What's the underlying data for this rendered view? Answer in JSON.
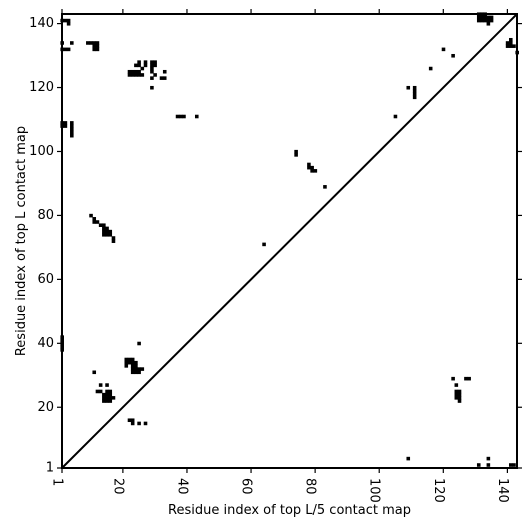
{
  "chart_data": {
    "type": "heatmap",
    "title": "",
    "xlabel": "Residue index of top L/5 contact map",
    "ylabel": "Residue index of top L contact map",
    "xlim": [
      1,
      143
    ],
    "ylim": [
      1,
      143
    ],
    "x_ticks": [
      1,
      20,
      40,
      60,
      80,
      100,
      120,
      140
    ],
    "y_ticks": [
      1,
      20,
      40,
      60,
      80,
      100,
      120,
      140
    ],
    "diagonal_line": true,
    "grid": false,
    "cell_color": "#000000",
    "upper_left_contacts": [
      [
        1,
        141
      ],
      [
        2,
        141
      ],
      [
        3,
        141
      ],
      [
        3,
        140
      ],
      [
        1,
        134
      ],
      [
        1,
        132
      ],
      [
        2,
        132
      ],
      [
        3,
        132
      ],
      [
        4,
        134
      ],
      [
        9,
        134
      ],
      [
        10,
        134
      ],
      [
        11,
        134
      ],
      [
        12,
        134
      ],
      [
        11,
        133
      ],
      [
        12,
        133
      ],
      [
        11,
        132
      ],
      [
        12,
        132
      ],
      [
        1,
        109
      ],
      [
        1,
        108
      ],
      [
        2,
        109
      ],
      [
        2,
        108
      ],
      [
        4,
        109
      ],
      [
        4,
        108
      ],
      [
        4,
        107
      ],
      [
        4,
        106
      ],
      [
        4,
        105
      ],
      [
        37,
        111
      ],
      [
        38,
        111
      ],
      [
        39,
        111
      ],
      [
        43,
        111
      ],
      [
        22,
        125
      ],
      [
        23,
        125
      ],
      [
        24,
        125
      ],
      [
        25,
        125
      ],
      [
        22,
        124
      ],
      [
        23,
        124
      ],
      [
        24,
        124
      ],
      [
        25,
        124
      ],
      [
        26,
        124
      ],
      [
        24,
        127
      ],
      [
        25,
        127
      ],
      [
        25,
        128
      ],
      [
        26,
        126
      ],
      [
        27,
        127
      ],
      [
        27,
        128
      ],
      [
        29,
        128
      ],
      [
        30,
        128
      ],
      [
        29,
        127
      ],
      [
        30,
        127
      ],
      [
        29,
        126
      ],
      [
        29,
        125
      ],
      [
        30,
        124
      ],
      [
        29,
        123
      ],
      [
        33,
        125
      ],
      [
        32,
        123
      ],
      [
        33,
        123
      ],
      [
        29,
        120
      ],
      [
        10,
        80
      ],
      [
        11,
        79
      ],
      [
        11,
        78
      ],
      [
        12,
        78
      ],
      [
        13,
        77
      ],
      [
        14,
        77
      ],
      [
        14,
        76
      ],
      [
        15,
        76
      ],
      [
        14,
        75
      ],
      [
        15,
        75
      ],
      [
        16,
        75
      ],
      [
        14,
        74
      ],
      [
        15,
        74
      ],
      [
        16,
        74
      ],
      [
        17,
        73
      ],
      [
        17,
        72
      ],
      [
        74,
        100
      ],
      [
        74,
        99
      ],
      [
        78,
        96
      ],
      [
        78,
        95
      ],
      [
        79,
        95
      ],
      [
        79,
        94
      ],
      [
        80,
        94
      ],
      [
        83,
        89
      ],
      [
        64,
        71
      ],
      [
        1,
        42
      ],
      [
        1,
        41
      ],
      [
        1,
        40
      ],
      [
        1,
        39
      ],
      [
        1,
        38
      ],
      [
        25,
        40
      ],
      [
        21,
        35
      ],
      [
        22,
        35
      ],
      [
        23,
        35
      ],
      [
        21,
        34
      ],
      [
        22,
        34
      ],
      [
        23,
        34
      ],
      [
        21,
        33
      ],
      [
        23,
        33
      ],
      [
        24,
        33
      ],
      [
        24,
        34
      ],
      [
        23,
        32
      ],
      [
        24,
        32
      ],
      [
        25,
        32
      ],
      [
        26,
        32
      ],
      [
        23,
        31
      ],
      [
        24,
        31
      ],
      [
        25,
        31
      ],
      [
        11,
        31
      ],
      [
        13,
        27
      ],
      [
        15,
        27
      ],
      [
        12,
        25
      ],
      [
        13,
        25
      ],
      [
        15,
        25
      ],
      [
        16,
        25
      ],
      [
        14,
        24
      ],
      [
        15,
        24
      ],
      [
        16,
        24
      ],
      [
        14,
        23
      ],
      [
        15,
        23
      ],
      [
        16,
        23
      ],
      [
        17,
        23
      ],
      [
        14,
        22
      ],
      [
        15,
        22
      ],
      [
        16,
        22
      ],
      [
        22,
        16
      ],
      [
        23,
        16
      ],
      [
        23,
        15
      ],
      [
        25,
        15
      ],
      [
        27,
        15
      ]
    ],
    "lower_right_contacts": [
      [
        131,
        143
      ],
      [
        132,
        143
      ],
      [
        133,
        143
      ],
      [
        131,
        142
      ],
      [
        132,
        142
      ],
      [
        133,
        142
      ],
      [
        134,
        142
      ],
      [
        135,
        142
      ],
      [
        131,
        141
      ],
      [
        132,
        141
      ],
      [
        133,
        141
      ],
      [
        134,
        141
      ],
      [
        135,
        141
      ],
      [
        134,
        140
      ],
      [
        141,
        135
      ],
      [
        140,
        134
      ],
      [
        141,
        134
      ],
      [
        140,
        133
      ],
      [
        141,
        133
      ],
      [
        142,
        133
      ],
      [
        143,
        131
      ],
      [
        120,
        132
      ],
      [
        123,
        130
      ],
      [
        116,
        126
      ],
      [
        109,
        120
      ],
      [
        111,
        120
      ],
      [
        111,
        119
      ],
      [
        111,
        118
      ],
      [
        111,
        117
      ],
      [
        105,
        111
      ],
      [
        123,
        29
      ],
      [
        127,
        29
      ],
      [
        128,
        29
      ],
      [
        124,
        27
      ],
      [
        124,
        25
      ],
      [
        125,
        25
      ],
      [
        124,
        24
      ],
      [
        125,
        24
      ],
      [
        124,
        23
      ],
      [
        125,
        23
      ],
      [
        125,
        22
      ],
      [
        109,
        4
      ],
      [
        131,
        2
      ],
      [
        134,
        2
      ],
      [
        141,
        2
      ],
      [
        142,
        2
      ],
      [
        134,
        4
      ]
    ]
  }
}
